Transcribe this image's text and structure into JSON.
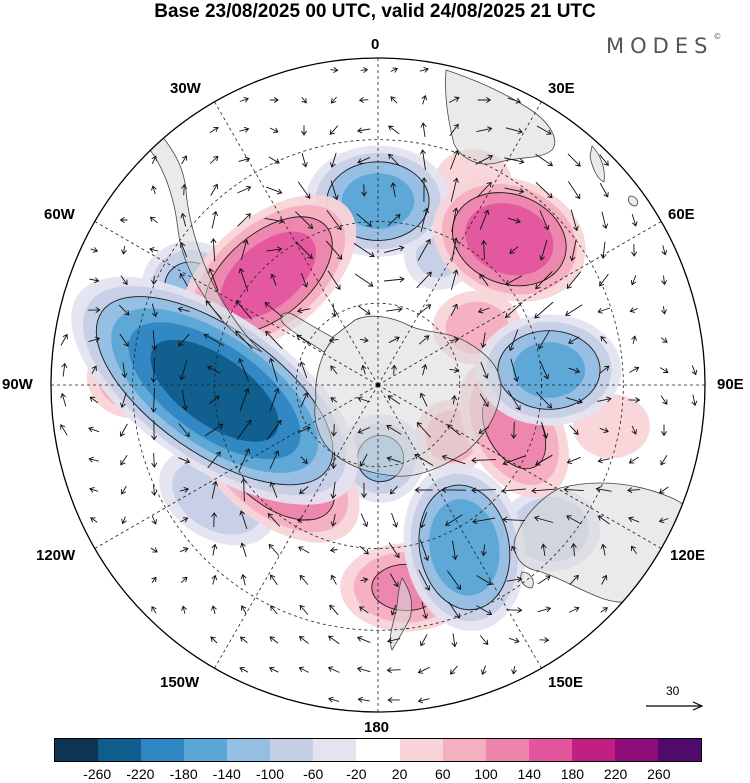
{
  "title": "Base 23/08/2025 00 UTC, valid 24/08/2025 21 UTC",
  "brand": {
    "name": "MODES",
    "mark": "©"
  },
  "longitude_labels": {
    "lon_0": "0",
    "lon_30e": "30E",
    "lon_60e": "60E",
    "lon_90e": "90E",
    "lon_120e": "120E",
    "lon_150e": "150E",
    "lon_180": "180",
    "lon_150w": "150W",
    "lon_120w": "120W",
    "lon_90w": "90W",
    "lon_60w": "60W",
    "lon_30w": "30W"
  },
  "reference_vector": {
    "value": "30"
  },
  "colorbar": {
    "ticks": [
      "-260",
      "-220",
      "-180",
      "-140",
      "-100",
      "-60",
      "-20",
      "20",
      "60",
      "100",
      "140",
      "180",
      "220",
      "260"
    ],
    "colors": [
      "#0b3552",
      "#0f5d8c",
      "#2f86c2",
      "#5aa6d6",
      "#94bfe3",
      "#c5cfe6",
      "#e4e3f0",
      "#ffffff",
      "#f8d4d8",
      "#f4afc0",
      "#ee85ad",
      "#e2559d",
      "#c21f85",
      "#8d0c7a",
      "#4f0a6b"
    ]
  },
  "field": {
    "blobs": [
      {
        "lon": -92,
        "lat": -50,
        "value": -240,
        "elong": 2.2,
        "rot": 35
      },
      {
        "lon": 0,
        "lat": -45,
        "value": -150,
        "elong": 1.3,
        "rot": 0
      },
      {
        "lon": 85,
        "lat": -48,
        "value": -150,
        "elong": 1.3,
        "rot": 0
      },
      {
        "lon": 152,
        "lat": -45,
        "value": -170,
        "elong": 1.4,
        "rot": 80
      },
      {
        "lon": -62,
        "lat": -38,
        "value": -100,
        "elong": 1.1,
        "rot": 0
      },
      {
        "lon": 178,
        "lat": -72,
        "value": -100,
        "elong": 1.0,
        "rot": 0
      },
      {
        "lon": -125,
        "lat": -42,
        "value": -90,
        "elong": 1.5,
        "rot": 30
      },
      {
        "lon": 130,
        "lat": -35,
        "value": -90,
        "elong": 1.2,
        "rot": 0
      },
      {
        "lon": 25,
        "lat": -55,
        "value": -60,
        "elong": 1.0,
        "rot": 0
      },
      {
        "lon": -45,
        "lat": -52,
        "value": 160,
        "elong": 1.8,
        "rot": -40
      },
      {
        "lon": 42,
        "lat": -42,
        "value": 170,
        "elong": 1.3,
        "rot": 20
      },
      {
        "lon": -128,
        "lat": -58,
        "value": 150,
        "elong": 1.8,
        "rot": 40
      },
      {
        "lon": 108,
        "lat": -55,
        "value": 110,
        "elong": 1.6,
        "rot": 60
      },
      {
        "lon": 172,
        "lat": -40,
        "value": 100,
        "elong": 1.5,
        "rot": 0
      },
      {
        "lon": -88,
        "lat": -30,
        "value": 90,
        "elong": 1.1,
        "rot": 0
      },
      {
        "lon": 125,
        "lat": -68,
        "value": 70,
        "elong": 1.0,
        "rot": 0
      },
      {
        "lon": 60,
        "lat": -62,
        "value": 70,
        "elong": 1.2,
        "rot": 0
      },
      {
        "lon": 25,
        "lat": -35,
        "value": 50,
        "elong": 1.2,
        "rot": 0
      },
      {
        "lon": 100,
        "lat": -32,
        "value": 50,
        "elong": 1.2,
        "rot": 0
      }
    ]
  }
}
